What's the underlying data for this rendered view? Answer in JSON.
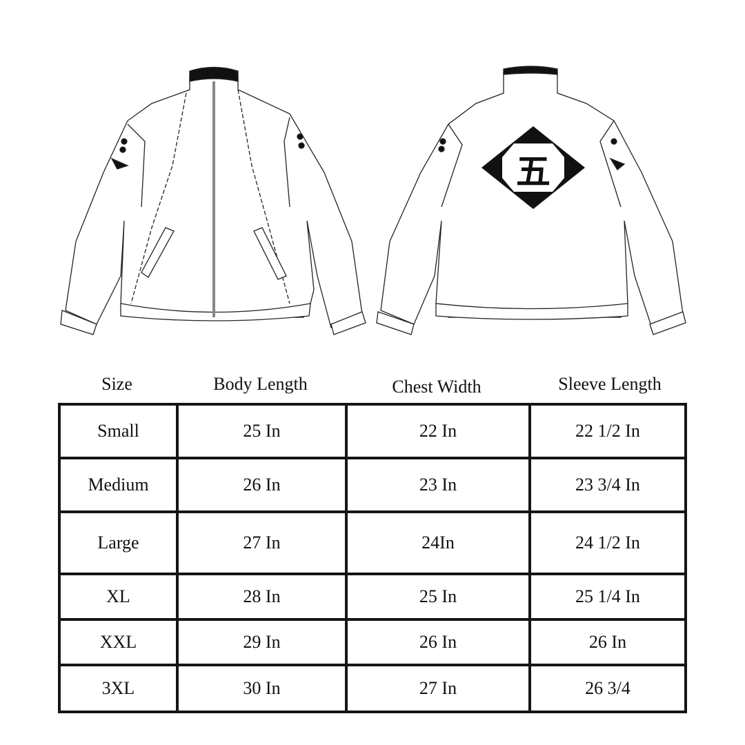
{
  "emblem_character": "五",
  "table": {
    "headers": [
      "Size",
      "Body Length",
      "Chest Width",
      "Sleeve Length"
    ],
    "rows": [
      [
        "Small",
        "25 In",
        "22 In",
        "22 1/2 In"
      ],
      [
        "Medium",
        "26 In",
        "23 In",
        "23 3/4 In"
      ],
      [
        "Large",
        "27 In",
        "24In",
        "24 1/2 In"
      ],
      [
        "XL",
        "28 In",
        "25 In",
        "25 1/4 In"
      ],
      [
        "XXL",
        "29 In",
        "26 In",
        "26 In"
      ],
      [
        "3XL",
        "30 In",
        "27 In",
        "26 3/4"
      ]
    ]
  }
}
